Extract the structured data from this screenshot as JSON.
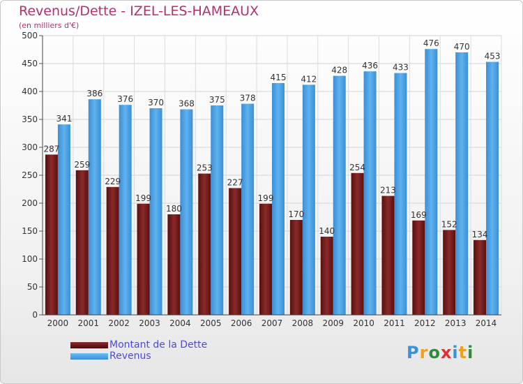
{
  "chart_data": {
    "type": "bar",
    "title": "Revenus/Dette - IZEL-LES-HAMEAUX",
    "subtitle": "(en milliers d'€)",
    "categories": [
      "2000",
      "2001",
      "2002",
      "2003",
      "2004",
      "2005",
      "2006",
      "2007",
      "2008",
      "2009",
      "2010",
      "2011",
      "2012",
      "2013",
      "2014"
    ],
    "series": [
      {
        "name": "Montant de la Dette",
        "color": "#7a1b1b",
        "values": [
          287,
          259,
          229,
          199,
          180,
          253,
          227,
          199,
          170,
          140,
          254,
          213,
          169,
          152,
          134
        ]
      },
      {
        "name": "Revenus",
        "color": "#4aa3e6",
        "values": [
          341,
          386,
          376,
          370,
          368,
          375,
          378,
          415,
          412,
          428,
          436,
          433,
          476,
          470,
          453
        ]
      }
    ],
    "ylim": [
      0,
      500
    ],
    "yticks": [
      0,
      50,
      100,
      150,
      200,
      250,
      300,
      350,
      400,
      450,
      500
    ],
    "grid": true,
    "legend": "bottom-left"
  },
  "logo": {
    "letters": [
      "P",
      "r",
      "o",
      "x",
      "i",
      "t",
      "i"
    ],
    "colors": [
      "#3d8fd6",
      "#f0a020",
      "#2e8b3a",
      "#e03030",
      "#3d8fd6",
      "#f0a020",
      "#2e8b3a"
    ]
  }
}
